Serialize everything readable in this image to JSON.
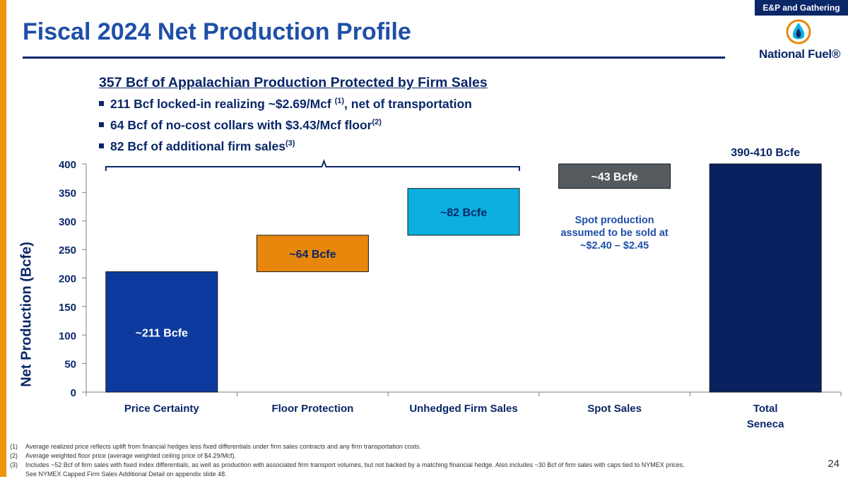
{
  "header": {
    "tag": "E&P and Gathering",
    "title": "Fiscal 2024 Net Production Profile",
    "logo_text": "National Fuel®"
  },
  "callout": {
    "headline": "357 Bcf of Appalachian Production Protected by Firm Sales",
    "bullets": [
      {
        "text": "211 Bcf locked-in realizing ~$2.69/Mcf ",
        "sup": "(1)",
        "tail": ", net of transportation"
      },
      {
        "text": "64 Bcf of no-cost collars with $3.43/Mcf floor",
        "sup": "(2)",
        "tail": ""
      },
      {
        "text": "82 Bcf of additional firm sales",
        "sup": "(3)",
        "tail": ""
      }
    ]
  },
  "chart_data": {
    "type": "bar",
    "subtype": "waterfall",
    "title": "",
    "xlabel": "",
    "ylabel": "Net Production (Bcfe)",
    "ylim": [
      0,
      400
    ],
    "yticks": [
      0,
      50,
      100,
      150,
      200,
      250,
      300,
      350,
      400
    ],
    "categories": [
      "Price Certainty",
      "Floor Protection",
      "Unhedged Firm Sales",
      "Spot Sales",
      "Total Seneca"
    ],
    "bars": [
      {
        "category": "Price Certainty",
        "base": 0,
        "value": 211,
        "label": "~211 Bcfe",
        "color": "#0d3a9e"
      },
      {
        "category": "Floor Protection",
        "base": 211,
        "value": 64,
        "label": "~64 Bcfe",
        "color": "#e8870c"
      },
      {
        "category": "Unhedged Firm Sales",
        "base": 275,
        "value": 82,
        "label": "~82 Bcfe",
        "color": "#0bb0e0"
      },
      {
        "category": "Spot Sales",
        "base": 357,
        "value": 43,
        "label": "~43 Bcfe",
        "color": "#555a5e"
      },
      {
        "category": "Total Seneca",
        "base": 0,
        "value": 400,
        "label": "390-410 Bcfe",
        "color": "#0a2160"
      }
    ],
    "annotation": "Spot production assumed to be sold at ~$2.40 – $2.45"
  },
  "footnotes": [
    {
      "num": "(1)",
      "text": "Average realized price reflects uplift from financial hedges less fixed differentials under firm sales contracts and any firm transportation costs."
    },
    {
      "num": "(2)",
      "text": "Average weighted floor price (average weighted ceiling price of $4.29/Mcf)."
    },
    {
      "num": "(3)",
      "text": "Includes ~52 Bcf of firm sales with fixed index differentials, as well as production with associated firm transport volumes, but not backed by a matching financial hedge. Also includes ~30 Bcf of firm sales with caps tied to NYMEX prices."
    }
  ],
  "footnote_continuation": "See NYMEX Capped Firm Sales Additional Detail on appendix slide 48.",
  "page_number": "24"
}
